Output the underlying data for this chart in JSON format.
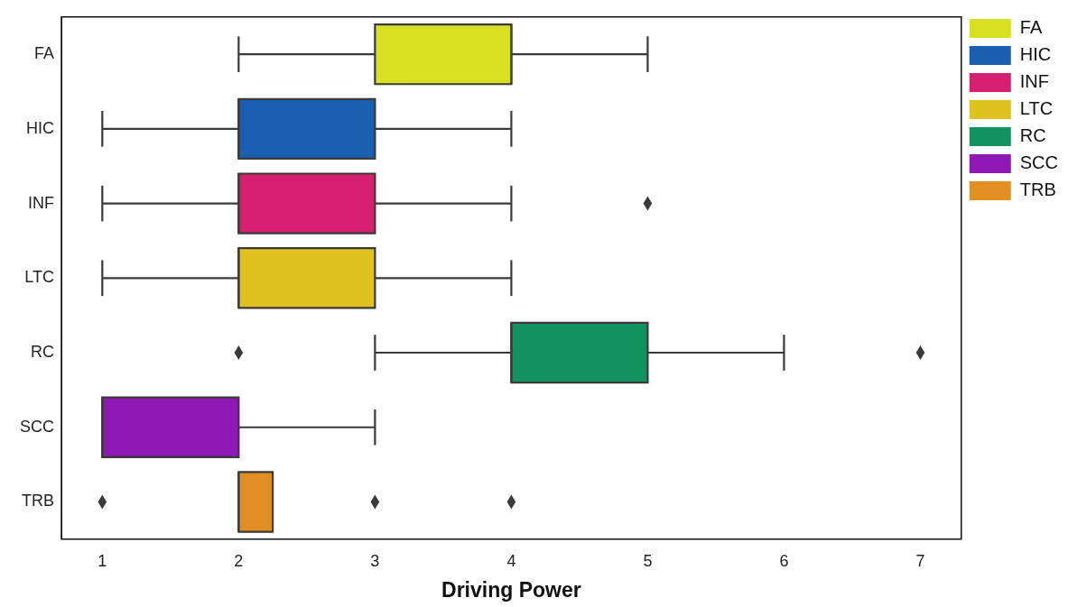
{
  "chart_data": {
    "type": "box",
    "orientation": "horizontal",
    "xlabel": "Driving Power",
    "categories": [
      "FA",
      "HIC",
      "INF",
      "LTC",
      "RC",
      "SCC",
      "TRB"
    ],
    "series": [
      {
        "name": "FA",
        "color": "#d8e01f",
        "boxes": [
          {
            "low": 2,
            "q1": 3,
            "median": 4,
            "q3": 4,
            "high": 5
          },
          null,
          null,
          null,
          null,
          null,
          null
        ]
      },
      {
        "name": "HIC",
        "color": "#1a5fb0",
        "boxes": [
          null,
          {
            "low": 1,
            "q1": 2,
            "median": 2,
            "q3": 3,
            "high": 4
          },
          null,
          null,
          null,
          null,
          null
        ]
      },
      {
        "name": "INF",
        "color": "#d61f6f",
        "boxes": [
          null,
          null,
          {
            "low": 1,
            "q1": 2,
            "median": 2,
            "q3": 3,
            "high": 4,
            "outliers": [
              5
            ]
          },
          null,
          null,
          null,
          null
        ]
      },
      {
        "name": "LTC",
        "color": "#dfc220",
        "boxes": [
          null,
          null,
          null,
          {
            "low": 1,
            "q1": 2,
            "median": 2,
            "q3": 3,
            "high": 4
          },
          null,
          null,
          null
        ]
      },
      {
        "name": "RC",
        "color": "#13915f",
        "boxes": [
          null,
          null,
          null,
          null,
          {
            "low": 3,
            "q1": 4,
            "median": 4,
            "q3": 5,
            "high": 6,
            "outliers": [
              2,
              7
            ]
          },
          null,
          null
        ]
      },
      {
        "name": "SCC",
        "color": "#9019b5",
        "boxes": [
          null,
          null,
          null,
          null,
          null,
          {
            "low": 1,
            "q1": 1,
            "median": 1,
            "q3": 2,
            "high": 3
          },
          null
        ]
      },
      {
        "name": "TRB",
        "color": "#e08f22",
        "boxes": [
          null,
          null,
          null,
          null,
          null,
          null,
          {
            "low": 2,
            "q1": 2,
            "median": 2,
            "q3": 2.25,
            "high": 2.25,
            "outliers": [
              1,
              3,
              4
            ]
          }
        ]
      }
    ],
    "xlim": [
      0.7,
      7.3
    ],
    "xticks": [
      1,
      2,
      3,
      4,
      5,
      6,
      7
    ],
    "grid": false,
    "legend": "top right",
    "marker": "diamond"
  }
}
